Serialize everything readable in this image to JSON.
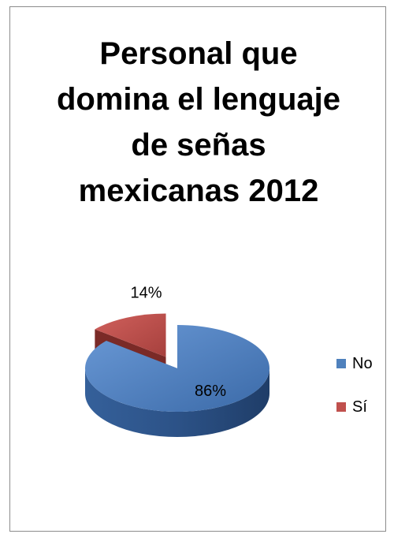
{
  "chart_data": {
    "type": "pie",
    "title_lines": [
      "Personal que",
      "domina el lenguaje",
      "de señas",
      "mexicanas 2012"
    ],
    "categories": [
      "No",
      "Sí"
    ],
    "values": [
      86,
      14
    ],
    "data_labels": [
      "86%",
      "14%"
    ],
    "colors": [
      "#4f81bd",
      "#c0504d"
    ],
    "legend_position": "right",
    "style": "3d-exploded"
  }
}
